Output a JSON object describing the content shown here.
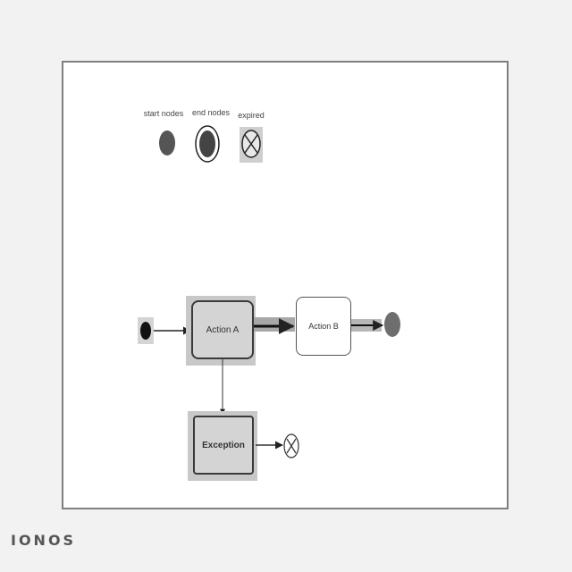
{
  "legend": {
    "start_label": "start nodes",
    "end_label": "end nodes",
    "expired_label": "expired"
  },
  "nodes": {
    "action_a": "Action A",
    "action_b": "Action B",
    "exception": "Exception"
  },
  "brand": "IONOS",
  "colors": {
    "frame_border": "#7f7f7f",
    "node_fill": "#d4d4d4",
    "node_stroke": "#3a3a3a",
    "end_node": "#6e6e6e",
    "start_node": "#111111"
  }
}
